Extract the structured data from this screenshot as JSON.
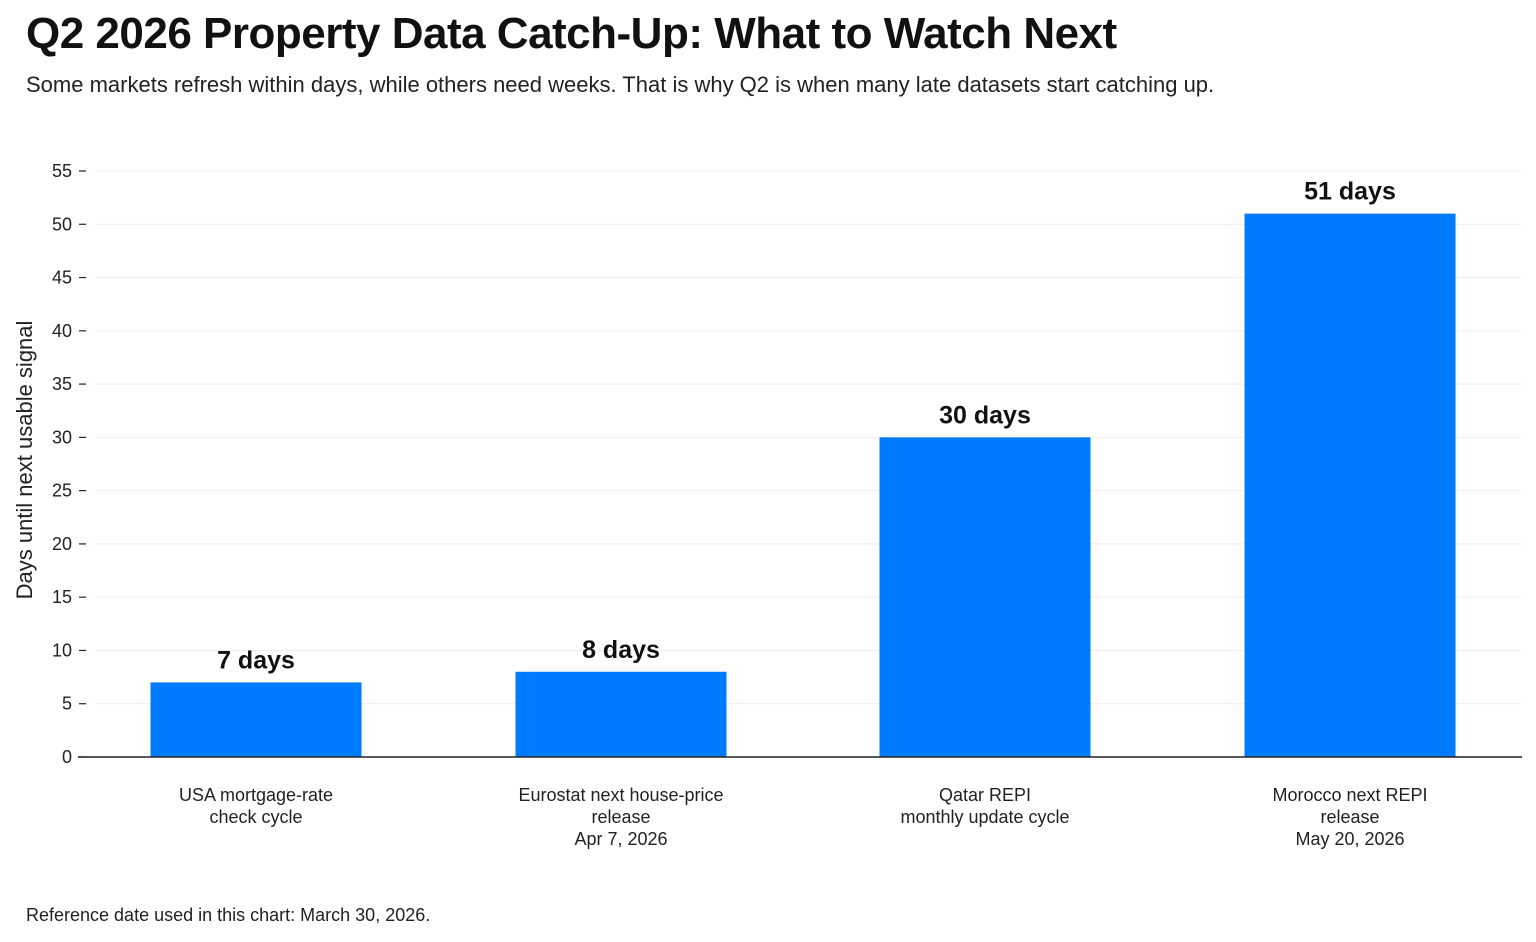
{
  "header": {
    "title": "Q2 2026 Property Data Catch-Up: What to Watch Next",
    "subtitle": "Some markets refresh within days, while others need weeks. That is why Q2 is when many late datasets start catching up."
  },
  "footer": {
    "note": "Reference date used in this chart: March 30, 2026."
  },
  "chart_data": {
    "type": "bar",
    "categories": [
      [
        "USA mortgage-rate",
        "check cycle"
      ],
      [
        "Eurostat next house-price",
        "release",
        "Apr 7, 2026"
      ],
      [
        "Qatar REPI",
        "monthly update cycle"
      ],
      [
        "Morocco next REPI",
        "release",
        "May 20, 2026"
      ]
    ],
    "values": [
      7,
      8,
      30,
      51
    ],
    "data_labels": [
      "7 days",
      "8 days",
      "30 days",
      "51 days"
    ],
    "ylabel": "Days until next usable signal",
    "xlabel": "",
    "ylim": [
      0,
      55
    ],
    "yticks": [
      0,
      5,
      10,
      15,
      20,
      25,
      30,
      35,
      40,
      45,
      50,
      55
    ],
    "grid": true,
    "legend": "none",
    "colors": {
      "bar": "#007bff",
      "grid": "#eeeeee",
      "axis": "#222222"
    }
  }
}
